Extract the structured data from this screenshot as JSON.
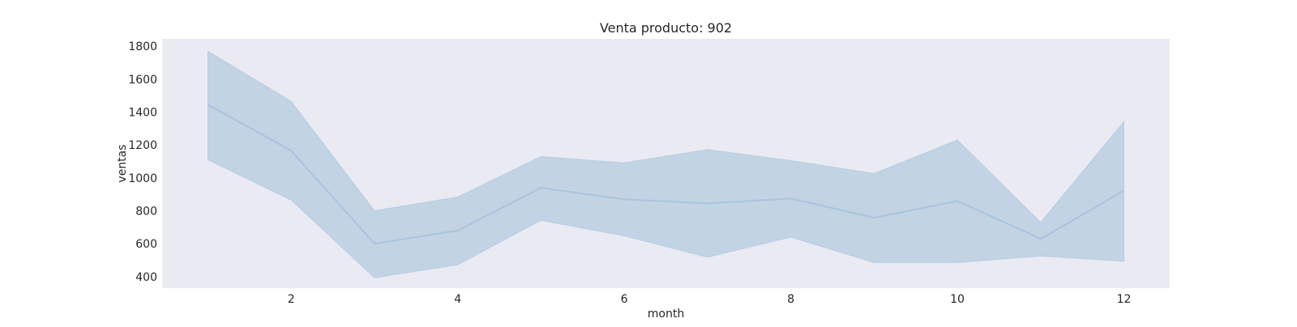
{
  "chart_data": {
    "type": "line",
    "title": "Venta producto: 902",
    "xlabel": "month",
    "ylabel": "ventas",
    "x": [
      1,
      2,
      3,
      4,
      5,
      6,
      7,
      8,
      9,
      10,
      11,
      12
    ],
    "series": [
      {
        "values": [
          1445,
          1165,
          600,
          680,
          940,
          870,
          845,
          875,
          758,
          860,
          630,
          922
        ],
        "lower": [
          1110,
          865,
          393,
          472,
          742,
          648,
          518,
          640,
          485,
          485,
          525,
          493
        ],
        "upper": [
          1770,
          1465,
          800,
          885,
          1130,
          1092,
          1172,
          1105,
          1027,
          1230,
          730,
          1343
        ]
      }
    ],
    "xticks": [
      2,
      4,
      6,
      8,
      10,
      12
    ],
    "yticks": [
      400,
      600,
      800,
      1000,
      1200,
      1400,
      1600,
      1800
    ],
    "xlim": [
      0.45,
      12.55
    ],
    "ylim": [
      330,
      1845
    ],
    "grid": false,
    "colors": {
      "background": "#eaeaf2",
      "line": "#a8c4df",
      "band": "#c2d3e4"
    }
  }
}
